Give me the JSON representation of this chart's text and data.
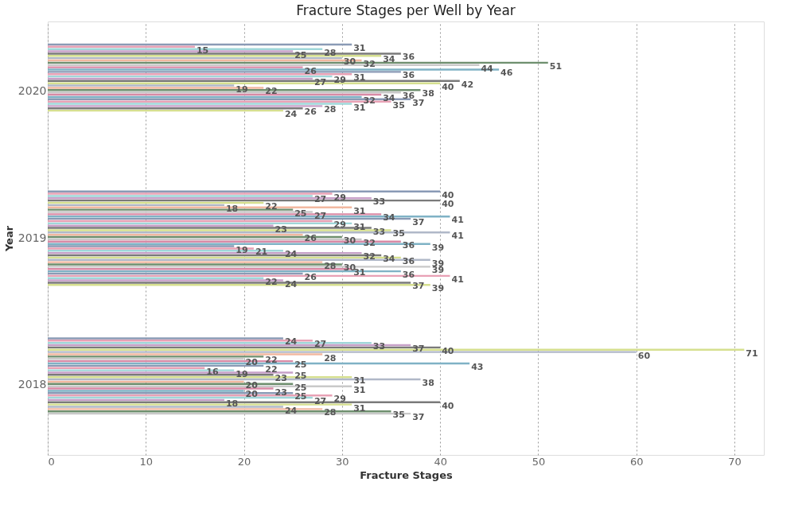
{
  "chart_data": {
    "type": "bar",
    "orientation": "horizontal",
    "title": "Fracture Stages per Well by Year",
    "xlabel": "Fracture Stages",
    "ylabel": "Year",
    "categories": [
      "2020",
      "2019",
      "2018"
    ],
    "xlim": [
      0,
      73
    ],
    "xticks": [
      0,
      10,
      20,
      30,
      40,
      50,
      60,
      70
    ],
    "grid": "x",
    "legend": false,
    "data_labels": true,
    "series": [
      {
        "color": "#8a9ab5",
        "values": [
          31,
          40,
          24
        ]
      },
      {
        "color": "#e8a1b5",
        "values": [
          15,
          29,
          27
        ]
      },
      {
        "color": "#9fd7d9",
        "values": [
          28,
          27,
          33
        ]
      },
      {
        "color": "#c7a0c8",
        "values": [
          25,
          33,
          37
        ]
      },
      {
        "color": "#7a7a7a",
        "values": [
          36,
          40,
          40
        ]
      },
      {
        "color": "#d6e08f",
        "values": [
          34,
          22,
          71
        ]
      },
      {
        "color": "#b0b8c8",
        "values": [
          30,
          18,
          60
        ]
      },
      {
        "color": "#f2b8a0",
        "values": [
          32,
          31,
          28
        ]
      },
      {
        "color": "#6e8f6e",
        "values": [
          51,
          25,
          22
        ]
      },
      {
        "color": "#c9c9c9",
        "values": [
          44,
          27,
          20
        ]
      },
      {
        "color": "#d98aa6",
        "values": [
          26,
          34,
          25
        ]
      },
      {
        "color": "#7fb2c5",
        "values": [
          46,
          41,
          43
        ]
      },
      {
        "color": "#8a9ab5",
        "values": [
          36,
          37,
          22
        ]
      },
      {
        "color": "#e8a1b5",
        "values": [
          31,
          29,
          16
        ]
      },
      {
        "color": "#9fd7d9",
        "values": [
          29,
          31,
          19
        ]
      },
      {
        "color": "#c7a0c8",
        "values": [
          27,
          23,
          25
        ]
      },
      {
        "color": "#7a7a7a",
        "values": [
          42,
          33,
          23
        ]
      },
      {
        "color": "#d6e08f",
        "values": [
          40,
          35,
          31
        ]
      },
      {
        "color": "#b0b8c8",
        "values": [
          19,
          41,
          38
        ]
      },
      {
        "color": "#f2b8a0",
        "values": [
          22,
          26,
          20
        ]
      },
      {
        "color": "#6e8f6e",
        "values": [
          38,
          30,
          25
        ]
      },
      {
        "color": "#c9c9c9",
        "values": [
          36,
          32,
          31
        ]
      },
      {
        "color": "#d98aa6",
        "values": [
          34,
          36,
          23
        ]
      },
      {
        "color": "#7fb2c5",
        "values": [
          32,
          39,
          20
        ]
      },
      {
        "color": "#8a9ab5",
        "values": [
          37,
          19,
          25
        ]
      },
      {
        "color": "#e8a1b5",
        "values": [
          35,
          21,
          29
        ]
      },
      {
        "color": "#9fd7d9",
        "values": [
          31,
          24,
          27
        ]
      },
      {
        "color": "#c7a0c8",
        "values": [
          28,
          32,
          18
        ]
      },
      {
        "color": "#7a7a7a",
        "values": [
          26,
          34,
          40
        ]
      },
      {
        "color": "#d6e08f",
        "values": [
          24,
          36,
          31
        ]
      },
      {
        "color": "#b0b8c8",
        "values": [
          null,
          39,
          24
        ]
      },
      {
        "color": "#f2b8a0",
        "values": [
          null,
          28,
          28
        ]
      },
      {
        "color": "#6e8f6e",
        "values": [
          null,
          30,
          35
        ]
      },
      {
        "color": "#c9c9c9",
        "values": [
          null,
          39,
          37
        ]
      },
      {
        "color": "#d98aa6",
        "values": [
          null,
          31,
          null
        ]
      },
      {
        "color": "#7fb2c5",
        "values": [
          null,
          36,
          null
        ]
      },
      {
        "color": "#8a9ab5",
        "values": [
          null,
          26,
          null
        ]
      },
      {
        "color": "#e8a1b5",
        "values": [
          null,
          41,
          null
        ]
      },
      {
        "color": "#9fd7d9",
        "values": [
          null,
          22,
          null
        ]
      },
      {
        "color": "#c7a0c8",
        "values": [
          null,
          24,
          null
        ]
      },
      {
        "color": "#7a7a7a",
        "values": [
          null,
          37,
          null
        ]
      },
      {
        "color": "#d6e08f",
        "values": [
          null,
          39,
          null
        ]
      }
    ]
  }
}
